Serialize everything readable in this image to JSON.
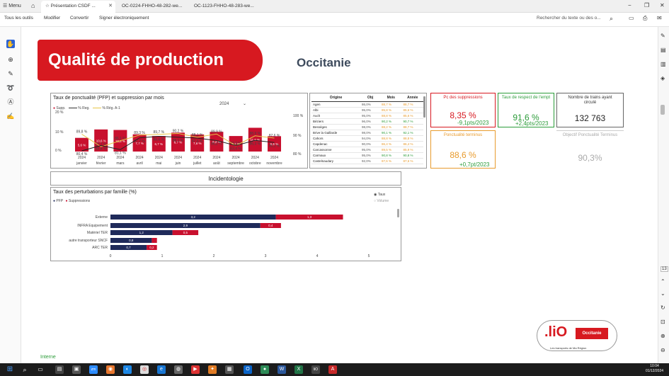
{
  "browser": {
    "menu_label": "Menu",
    "tabs": [
      {
        "label": "Présentation CSDF ...",
        "active": true
      },
      {
        "label": "OC-0224-FHHO-48-282-we...",
        "active": false
      },
      {
        "label": "OC-1123-FHHO-48-283-we...",
        "active": false
      }
    ]
  },
  "toolbar": {
    "all_tools": "Tous les outils",
    "modify": "Modifier",
    "convert": "Convertir",
    "sign": "Signer électroniquement",
    "search_placeholder": "Rechercher du texte ou des o..."
  },
  "slide": {
    "title": "Qualité de production",
    "region": "Occitanie",
    "incidentology_label": "Incidentologie",
    "footer_label": "Interne",
    "logo_text": ".liO",
    "logo_region": "Occitanie",
    "logo_tagline": "Les transports de Ma Région"
  },
  "punctuality_chart": {
    "title": "Taux de ponctualité (PFP) et suppression par mois",
    "year_selector": "2024",
    "legend": {
      "supp": "Supp.",
      "reg": "% Reg.",
      "reg_prev": "% Rég. A-1"
    },
    "left_axis": [
      "20 %",
      "10 %",
      "0 %"
    ],
    "right_axis": [
      "100 %",
      "90 %",
      "80 %"
    ],
    "chart_data": {
      "type": "bar",
      "categories": [
        "janvier",
        "février",
        "mars",
        "avril",
        "mai",
        "juin",
        "juillet",
        "août",
        "septembre",
        "octobre",
        "novembre"
      ],
      "year_labels": [
        "2024",
        "2024",
        "2024",
        "2024",
        "2024",
        "2024",
        "2024",
        "2024",
        "2024",
        "2024",
        "2024"
      ],
      "supp_values": [
        5.6,
        10.6,
        10.3,
        7.7,
        6.7,
        8.7,
        7.6,
        9.2,
        6.7,
        11.6,
        6.6
      ],
      "supp_labels": [
        "5,6 %",
        "10,6 %",
        "10,3 %",
        "7,7 %",
        "6,7 %",
        "8,7 %",
        "7,6 %",
        "9,2 %",
        "6,7 %",
        "11,6 %",
        "6,6 %"
      ],
      "reg_prev_values": [
        89.8,
        82.7,
        86.1,
        89.3,
        89.7,
        90.2,
        88.1,
        89.9,
        83.3,
        88.9,
        87.6
      ],
      "reg_prev_labels": [
        "89,8 %",
        "82,7 %",
        "86,1 %",
        "89,3 %",
        "89,7 %",
        "90,2 %",
        "88,1 %",
        "89,9 %",
        "83,3 %",
        "88,9 %",
        "87,6 %"
      ],
      "reg_values": [
        80.4,
        83.4,
        81.1,
        87.7,
        88.6,
        88.1,
        87.6,
        86.2,
        83.4,
        86.3,
        85.1
      ],
      "reg_labels": [
        "80,4 %",
        "83,4 %",
        "81,1 %",
        "87,7 %",
        "88,6 %",
        "88,1 %",
        "87,6 %",
        "86,2 %",
        "83,4 %",
        "86,3 %",
        "85,1 %"
      ],
      "ylim_supp": [
        0,
        20
      ],
      "ylim_reg": [
        80,
        100
      ]
    }
  },
  "origin_table": {
    "headers": [
      "Origine",
      "Obj",
      "Mois",
      "Année"
    ],
    "rows": [
      [
        "Agen",
        "86,0%",
        "88,7 %",
        "88,7 %"
      ],
      [
        "Albi",
        "95,0%",
        "85,8 %",
        "85,6 %"
      ],
      [
        "Auch",
        "95,0%",
        "88,8 %",
        "85,6 %"
      ],
      [
        "Béziers",
        "96,0%",
        "90,2 %",
        "90,7 %"
      ],
      [
        "Bessèges",
        "98,0%",
        "88,2 %",
        "88,7 %"
      ],
      [
        "Brive la Gaillarde",
        "98,0%",
        "90,1 %",
        "92,1 %"
      ],
      [
        "Cahors",
        "94,0%",
        "88,8 %",
        "88,8 %"
      ],
      [
        "Capdenac",
        "90,0%",
        "86,4 %",
        "86,4 %"
      ],
      [
        "Carcassonne",
        "95,0%",
        "89,5 %",
        "85,9 %"
      ],
      [
        "Carmaux",
        "95,0%",
        "90,8 %",
        "90,8 %"
      ],
      [
        "Castelnaudary",
        "92,0%",
        "87,6 %",
        "87,6 %"
      ]
    ]
  },
  "kpis": {
    "suppression": {
      "title": "Pc des suppressions",
      "value": "8,35 %",
      "delta": "-9,1pts/2023"
    },
    "empt": {
      "title": "Taux de respect de l'empt",
      "value": "91,6 %",
      "delta": "+2,4pts/2023"
    },
    "trains": {
      "title": "Nombre de trains ayant circulé",
      "value": "132 763"
    },
    "terminus": {
      "title": "Ponctualité terminus",
      "value": "88,6 %",
      "delta": "+0,7pt/2023"
    },
    "objective": {
      "title": "Objectif Ponctualité Terminus",
      "value": "90,3%"
    }
  },
  "perturbation_chart": {
    "title": "Taux des perturbations par famille (%)",
    "legend_pfp": "PFP",
    "legend_supp": "Suppressions",
    "radio_taux": "Taux",
    "radio_volume": "Volume",
    "colors": {
      "pfp": "#1f2a5a",
      "supp": "#c8102e"
    },
    "chart_data": {
      "type": "bar",
      "orientation": "horizontal",
      "stacked": true,
      "categories": [
        "Externe",
        "INFRA Equipement",
        "Matériel TER",
        "autre transporteur SNCF",
        "ARC TER"
      ],
      "series": [
        {
          "name": "PFP",
          "values": [
            3.2,
            2.9,
            1.2,
            0.8,
            0.7
          ],
          "labels": [
            "3,2",
            "2,9",
            "1,2",
            "0,8",
            "0,7"
          ]
        },
        {
          "name": "Suppressions",
          "values": [
            1.3,
            0.4,
            0.5,
            0.1,
            0.2
          ],
          "labels": [
            "1,3",
            "0,4",
            "0,5",
            "",
            "0,2"
          ]
        }
      ],
      "xticks": [
        "0",
        "1",
        "2",
        "3",
        "4",
        "5"
      ],
      "xlim": [
        0,
        5
      ]
    }
  },
  "sidebar_right": {
    "page_number": "13"
  },
  "taskbar": {
    "time": "10:04",
    "date": "01/12/2024"
  }
}
